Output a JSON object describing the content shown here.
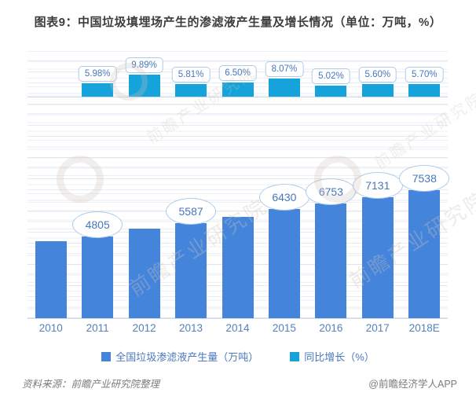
{
  "title": "图表9：中国垃圾填埋场产生的渗滤液产生量及增长情况（单位：万吨，%）",
  "chart_data": {
    "type": "bar",
    "categories": [
      "2010",
      "2011",
      "2012",
      "2013",
      "2014",
      "2015",
      "2016",
      "2017",
      "2018E"
    ],
    "series": [
      {
        "name": "全国垃圾渗滤液产生量（万吨）",
        "type": "bar",
        "axis": "primary",
        "color": "#4484DB",
        "values": [
          4534,
          4805,
          5281,
          5587,
          5950,
          6430,
          6753,
          7131,
          7538
        ],
        "labels": [
          null,
          "4805",
          null,
          "5587",
          null,
          "6430",
          "6753",
          "7131",
          "7538"
        ]
      },
      {
        "name": "同比增长（%）",
        "type": "bar",
        "axis": "secondary",
        "color": "#16A2DB",
        "values": [
          null,
          5.98,
          9.89,
          5.81,
          6.5,
          8.07,
          5.02,
          5.6,
          5.7
        ],
        "labels": [
          null,
          "5.98%",
          "9.89%",
          "5.81%",
          "6.50%",
          "8.07%",
          "5.02%",
          "5.60%",
          "5.70%"
        ]
      }
    ],
    "title": "图表9：中国垃圾填埋场产生的渗滤液产生量及增长情况（单位：万吨，%）",
    "xlabel": "",
    "ylabel": "",
    "grid": true,
    "legend_position": "bottom"
  },
  "legend": {
    "items": [
      {
        "label": "全国垃圾渗滤液产生量（万吨）"
      },
      {
        "label": "同比增长（%）"
      }
    ]
  },
  "footer": {
    "source": "资料来源：前瞻产业研究院整理",
    "credit": "@前瞻经济学人APP"
  },
  "watermark": {
    "text": "前瞻产业研究院"
  },
  "colors": {
    "bar": "#4484DB",
    "growth": "#16A2DB",
    "callout_border": "#AECBEA",
    "callout_text": "#4577BE",
    "axis_text": "#5580BE",
    "legend_text": "#4B79BB",
    "title_text": "#3D3D3D",
    "footer_text": "#7C7C7C",
    "watermark": "#CFC5BA"
  }
}
